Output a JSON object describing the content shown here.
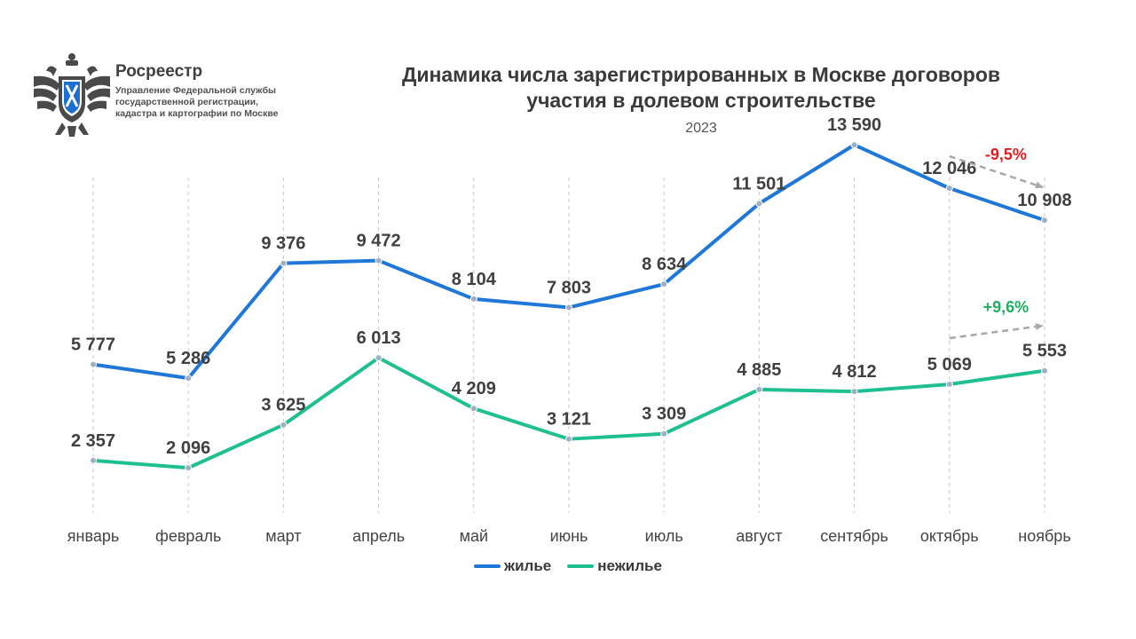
{
  "logo": {
    "name": "Росреестр",
    "subtitle": "Управление Федеральной службы государственной регистрации, кадастра и картографии по Москве",
    "icon": "double-headed-eagle-emblem"
  },
  "chart_data": {
    "type": "line",
    "title": "Динамика числа зарегистрированных в Москве договоров участия в долевом строительстве",
    "subtitle": "2023",
    "categories": [
      "январь",
      "февраль",
      "март",
      "апрель",
      "май",
      "июнь",
      "июль",
      "август",
      "сентябрь",
      "октябрь",
      "ноябрь"
    ],
    "series": [
      {
        "name": "жилье",
        "color": "#1f78d8",
        "values": [
          5777,
          5286,
          9376,
          9472,
          8104,
          7803,
          8634,
          11501,
          13590,
          12046,
          10908
        ],
        "labels": [
          "5 777",
          "5 286",
          "9 376",
          "9 472",
          "8 104",
          "7 803",
          "8 634",
          "11 501",
          "13 590",
          "12 046",
          "10 908"
        ]
      },
      {
        "name": "нежилье",
        "color": "#1fbf8f",
        "values": [
          2357,
          2096,
          3625,
          6013,
          4209,
          3121,
          3309,
          4885,
          4812,
          5069,
          5553
        ],
        "labels": [
          "2 357",
          "2 096",
          "3 625",
          "6 013",
          "4 209",
          "3 121",
          "3 309",
          "4 885",
          "4 812",
          "5 069",
          "5 553"
        ]
      }
    ],
    "annotations": [
      {
        "text": "-9,5%",
        "color": "#e02020",
        "series": "жилье",
        "from": "октябрь",
        "to": "ноябрь",
        "direction": "down"
      },
      {
        "text": "+9,6%",
        "color": "#20b060",
        "series": "нежилье",
        "from": "октябрь",
        "to": "ноябрь",
        "direction": "up"
      }
    ],
    "grid": "vertical-dashed",
    "legend_position": "bottom-center"
  }
}
